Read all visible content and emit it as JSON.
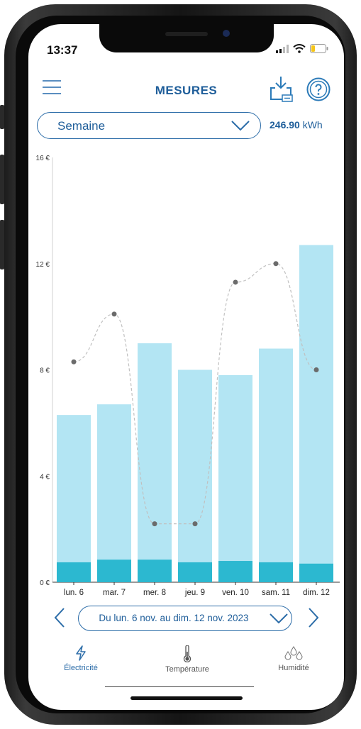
{
  "status_bar": {
    "time": "13:37"
  },
  "header": {
    "title": "MESURES"
  },
  "period_selector": {
    "value": "Semaine"
  },
  "total": {
    "value": "246.90",
    "unit": "kWh"
  },
  "date_range": {
    "label": "Du lun. 6 nov. au dim. 12 nov. 2023"
  },
  "tabs": [
    {
      "label": "Électricité",
      "active": true
    },
    {
      "label": "Température",
      "active": false
    },
    {
      "label": "Humidité",
      "active": false
    }
  ],
  "colors": {
    "bar": "#b3e5f3",
    "bar_base": "#2cb8d0",
    "accent": "#1f5e9a",
    "line": "#c0c0c0",
    "point": "#6b6b6b"
  },
  "chart_data": {
    "type": "bar",
    "categories": [
      "lun. 6",
      "mar. 7",
      "mer. 8",
      "jeu. 9",
      "ven. 10",
      "sam. 11",
      "dim. 12"
    ],
    "ylim": [
      0,
      16
    ],
    "yticks": [
      0,
      4,
      8,
      12,
      16
    ],
    "ytick_labels": [
      "0 €",
      "4 €",
      "8 €",
      "12 €",
      "16 €"
    ],
    "series": [
      {
        "values": [
          6.3,
          6.7,
          9.0,
          8.0,
          7.8,
          8.8,
          12.7
        ]
      },
      {
        "values": [
          0.75,
          0.85,
          0.85,
          0.75,
          0.8,
          0.75,
          0.7
        ]
      },
      {
        "values": [
          8.3,
          10.1,
          2.2,
          2.2,
          11.3,
          12.0,
          8.0
        ]
      }
    ]
  }
}
